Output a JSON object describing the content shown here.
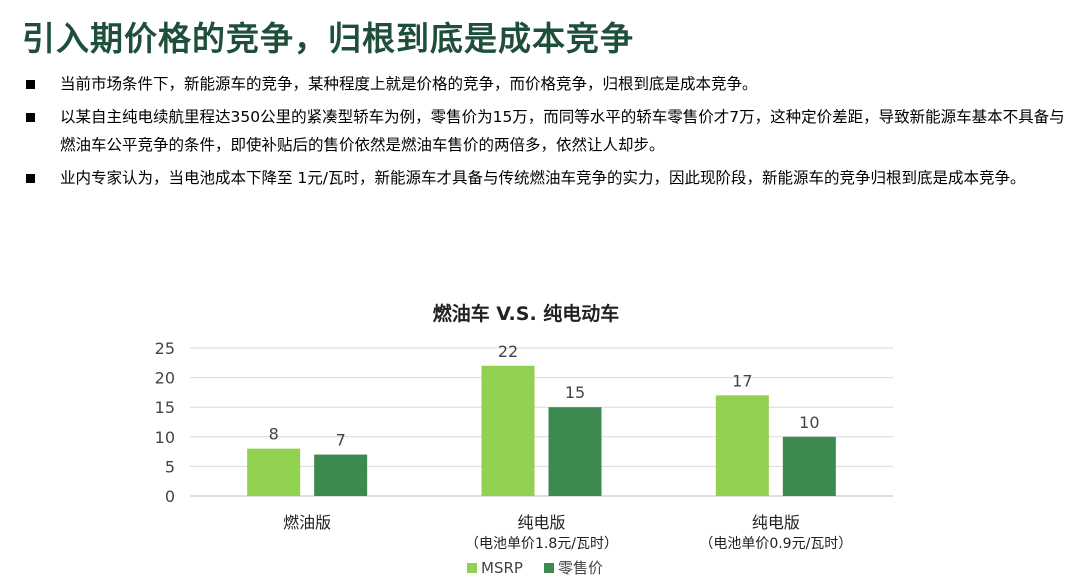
{
  "slide": {
    "title": "引入期价格的竞争，归根到底是成本竞争",
    "bullets": [
      "当前市场条件下，新能源车的竞争，某种程度上就是价格的竞争，而价格竞争，归根到底是成本竞争。",
      "以某自主纯电续航里程达350公里的紧凑型轿车为例，零售价为15万，而同等水平的轿车零售价才7万，这种定价差距，导致新能源车基本不具备与燃油车公平竞争的条件，即使补贴后的售价依然是燃油车售价的两倍多，依然让人却步。",
      "业内专家认为，当电池成本下降至 1元/瓦时，新能源车才具备与传统燃油车竞争的实力，因此现阶段，新能源车的竞争归根到底是成本竞争。"
    ]
  },
  "chart_data": {
    "type": "bar",
    "title": "燃油车 V.S. 纯电动车",
    "categories": [
      "燃油版",
      "纯电版",
      "纯电版"
    ],
    "category_sublabels": [
      "",
      "（电池单价1.8元/瓦时）",
      "（电池单价0.9元/瓦时）"
    ],
    "series": [
      {
        "name": "MSRP",
        "values": [
          8,
          22,
          17
        ],
        "color": "#92d050"
      },
      {
        "name": "零售价",
        "values": [
          7,
          15,
          10
        ],
        "color": "#3c8a50"
      }
    ],
    "yticks": [
      0,
      5,
      10,
      15,
      20,
      25
    ],
    "ylim": [
      0,
      25
    ],
    "grid": true,
    "legend_position": "bottom",
    "data_labels": true
  }
}
